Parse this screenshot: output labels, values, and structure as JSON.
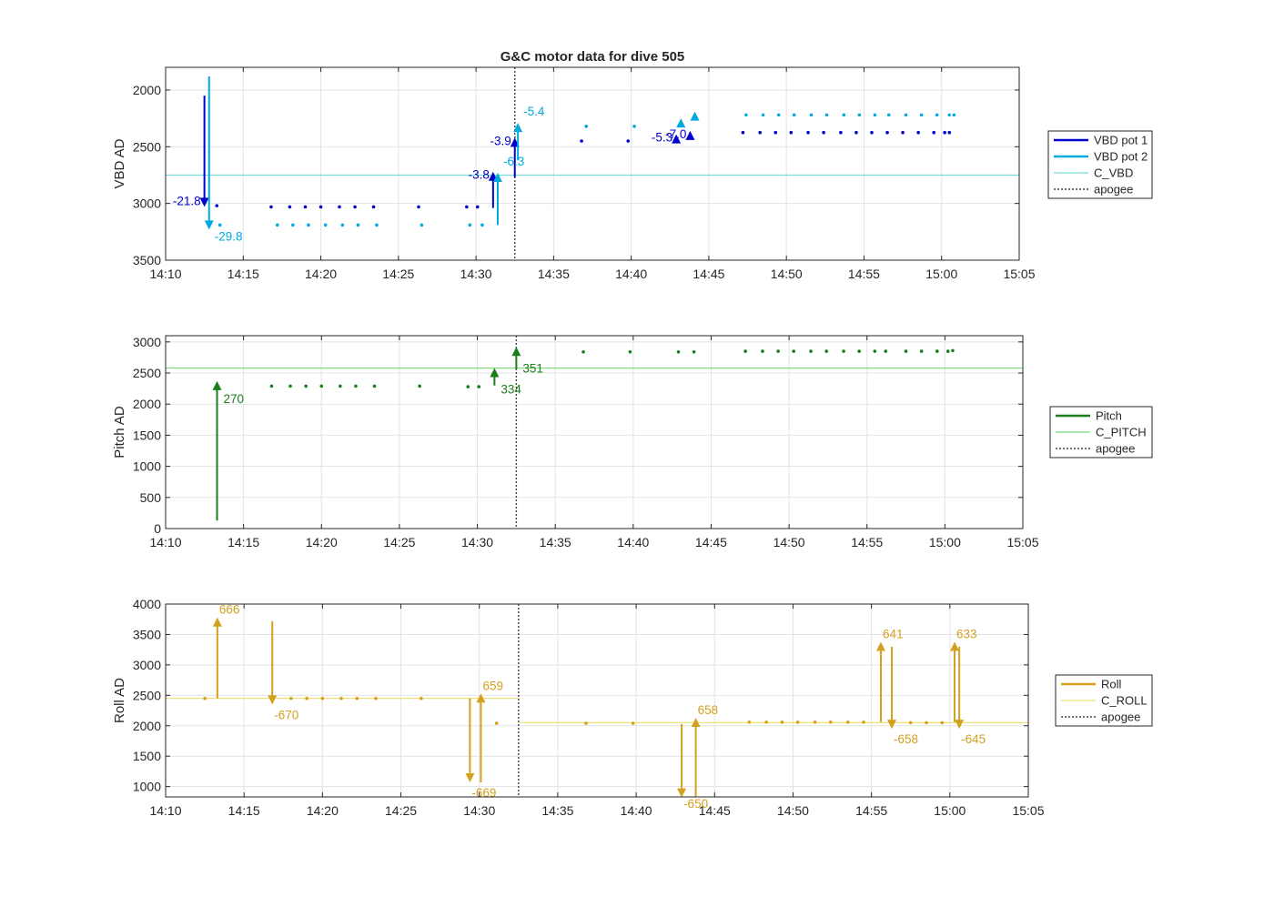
{
  "chart_data": [
    {
      "type": "scatter",
      "title": "G&C motor data for dive 505",
      "ylabel": "VBD AD",
      "xlim": [
        "14:10",
        "15:05"
      ],
      "ylim": [
        3500,
        1800
      ],
      "y_reversed": true,
      "xticks": [
        "14:10",
        "14:15",
        "14:20",
        "14:25",
        "14:30",
        "14:35",
        "14:40",
        "14:45",
        "14:50",
        "14:55",
        "15:00",
        "15:05"
      ],
      "yticks": [
        2000,
        2500,
        3000,
        3500
      ],
      "grid": true,
      "legend": {
        "placement": "outside-right",
        "entries": [
          "VBD pot 1",
          "VBD pot 2",
          "C_VBD",
          "apogee"
        ]
      },
      "series": [
        {
          "name": "VBD pot 1",
          "color": "#0000cc",
          "points": [
            [
              "14:13.3",
              3020
            ],
            [
              "14:16.8",
              3030
            ],
            [
              "14:18.0",
              3030
            ],
            [
              "14:19.0",
              3030
            ],
            [
              "14:20.0",
              3030
            ],
            [
              "14:21.2",
              3030
            ],
            [
              "14:22.2",
              3030
            ],
            [
              "14:23.4",
              3030
            ],
            [
              "14:26.3",
              3030
            ],
            [
              "14:29.4",
              3030
            ],
            [
              "14:30.1",
              3030
            ],
            [
              "14:36.8",
              2450
            ],
            [
              "14:39.8",
              2450
            ],
            [
              "14:47.2",
              2375
            ],
            [
              "14:48.3",
              2375
            ],
            [
              "14:49.3",
              2375
            ],
            [
              "14:50.3",
              2375
            ],
            [
              "14:51.4",
              2375
            ],
            [
              "14:52.4",
              2375
            ],
            [
              "14:53.5",
              2375
            ],
            [
              "14:54.5",
              2375
            ],
            [
              "14:55.5",
              2375
            ],
            [
              "14:56.5",
              2375
            ],
            [
              "14:57.5",
              2375
            ],
            [
              "14:58.5",
              2375
            ],
            [
              "14:59.5",
              2375
            ],
            [
              "15:00.2",
              2375
            ],
            [
              "15:00.5",
              2375
            ]
          ]
        },
        {
          "name": "VBD pot 2",
          "color": "#00aadd",
          "points": [
            [
              "14:13.5",
              3190
            ],
            [
              "14:17.2",
              3190
            ],
            [
              "14:18.2",
              3190
            ],
            [
              "14:19.2",
              3190
            ],
            [
              "14:20.3",
              3190
            ],
            [
              "14:21.4",
              3190
            ],
            [
              "14:22.4",
              3190
            ],
            [
              "14:23.6",
              3190
            ],
            [
              "14:26.5",
              3190
            ],
            [
              "14:29.6",
              3190
            ],
            [
              "14:30.4",
              3190
            ],
            [
              "14:37.1",
              2320
            ],
            [
              "14:40.2",
              2320
            ],
            [
              "14:47.4",
              2220
            ],
            [
              "14:48.5",
              2220
            ],
            [
              "14:49.5",
              2220
            ],
            [
              "14:50.5",
              2220
            ],
            [
              "14:51.6",
              2220
            ],
            [
              "14:52.6",
              2220
            ],
            [
              "14:53.7",
              2220
            ],
            [
              "14:54.7",
              2220
            ],
            [
              "14:55.7",
              2220
            ],
            [
              "14:56.6",
              2220
            ],
            [
              "14:57.7",
              2220
            ],
            [
              "14:58.7",
              2220
            ],
            [
              "14:59.7",
              2220
            ],
            [
              "15:00.5",
              2220
            ],
            [
              "15:00.8",
              2220
            ]
          ]
        }
      ],
      "reference_lines": [
        {
          "name": "C_VBD",
          "y": 2750,
          "color": "#77dddd"
        }
      ],
      "apogee": "14:32.5",
      "moves": [
        {
          "series": "VBD pot 1",
          "t": "14:12.5",
          "from": 2050,
          "to": 3030,
          "label": "-21.8"
        },
        {
          "series": "VBD pot 2",
          "t": "14:12.8",
          "from": 1880,
          "to": 3230,
          "label": "-29.8"
        },
        {
          "series": "VBD pot 1",
          "t": "14:31.1",
          "from": 3040,
          "to": 2720,
          "label": "-3.8"
        },
        {
          "series": "VBD pot 2",
          "t": "14:31.4",
          "from": 3190,
          "to": 2730,
          "label": "-6.3"
        },
        {
          "series": "VBD pot 1",
          "t": "14:32.5",
          "from": 2770,
          "to": 2420,
          "label": "-3.9"
        },
        {
          "series": "VBD pot 2",
          "t": "14:32.7",
          "from": 2620,
          "to": 2290,
          "label": "-5.4"
        },
        {
          "series": "VBD pot 1",
          "t": "14:42.9",
          "from": 2430,
          "to": 2390,
          "label": "-5.3"
        },
        {
          "series": "VBD pot 2",
          "t": "14:43.2",
          "from": 2330,
          "to": 2250,
          "label": ""
        },
        {
          "series": "VBD pot 1",
          "t": "14:43.8",
          "from": 2400,
          "to": 2360,
          "label": "-7.0"
        },
        {
          "series": "VBD pot 2",
          "t": "14:44.1",
          "from": 2260,
          "to": 2190,
          "label": ""
        }
      ]
    },
    {
      "type": "scatter",
      "title": "",
      "ylabel": "Pitch AD",
      "xlim": [
        "14:10",
        "15:05"
      ],
      "ylim": [
        0,
        3100
      ],
      "xticks": [
        "14:10",
        "14:15",
        "14:20",
        "14:25",
        "14:30",
        "14:35",
        "14:40",
        "14:45",
        "14:50",
        "14:55",
        "15:00",
        "15:05"
      ],
      "yticks": [
        0,
        500,
        1000,
        1500,
        2000,
        2500,
        3000
      ],
      "grid": true,
      "legend": {
        "placement": "outside-right",
        "entries": [
          "Pitch",
          "C_PITCH",
          "apogee"
        ]
      },
      "series": [
        {
          "name": "Pitch",
          "color": "#1a7f1a",
          "points": [
            [
              "14:16.8",
              2290
            ],
            [
              "14:18.0",
              2290
            ],
            [
              "14:19.0",
              2290
            ],
            [
              "14:20.0",
              2290
            ],
            [
              "14:21.2",
              2290
            ],
            [
              "14:22.2",
              2290
            ],
            [
              "14:23.4",
              2290
            ],
            [
              "14:26.3",
              2290
            ],
            [
              "14:29.4",
              2280
            ],
            [
              "14:30.1",
              2280
            ],
            [
              "14:36.8",
              2840
            ],
            [
              "14:39.8",
              2840
            ],
            [
              "14:42.9",
              2840
            ],
            [
              "14:43.9",
              2840
            ],
            [
              "14:47.2",
              2850
            ],
            [
              "14:48.3",
              2850
            ],
            [
              "14:49.3",
              2850
            ],
            [
              "14:50.3",
              2850
            ],
            [
              "14:51.4",
              2850
            ],
            [
              "14:52.4",
              2850
            ],
            [
              "14:53.5",
              2850
            ],
            [
              "14:54.5",
              2850
            ],
            [
              "14:55.5",
              2850
            ],
            [
              "14:56.2",
              2850
            ],
            [
              "14:57.5",
              2850
            ],
            [
              "14:58.5",
              2850
            ],
            [
              "14:59.5",
              2850
            ],
            [
              "15:00.2",
              2850
            ],
            [
              "15:00.5",
              2860
            ]
          ]
        }
      ],
      "reference_lines": [
        {
          "name": "C_PITCH",
          "y": 2580,
          "color": "#77dd77"
        }
      ],
      "apogee": "14:32.5",
      "moves": [
        {
          "series": "Pitch",
          "t": "14:13.3",
          "from": 130,
          "to": 2370,
          "label": "270"
        },
        {
          "series": "Pitch",
          "t": "14:31.1",
          "from": 2300,
          "to": 2580,
          "label": "334"
        },
        {
          "series": "Pitch",
          "t": "14:32.5",
          "from": 2560,
          "to": 2920,
          "label": "351"
        }
      ]
    },
    {
      "type": "scatter",
      "title": "",
      "ylabel": "Roll AD",
      "xlim": [
        "14:10",
        "15:05"
      ],
      "ylim": [
        830,
        4000
      ],
      "xticks": [
        "14:10",
        "14:15",
        "14:20",
        "14:25",
        "14:30",
        "14:35",
        "14:40",
        "14:45",
        "14:50",
        "14:55",
        "15:00",
        "15:05"
      ],
      "yticks": [
        1000,
        1500,
        2000,
        2500,
        3000,
        3500,
        4000
      ],
      "grid": true,
      "legend": {
        "placement": "outside-right",
        "entries": [
          "Roll",
          "C_ROLL",
          "apogee"
        ]
      },
      "series": [
        {
          "name": "Roll",
          "color": "#d4a020",
          "points": [
            [
              "14:12.5",
              2450
            ],
            [
              "14:18.0",
              2450
            ],
            [
              "14:19.0",
              2450
            ],
            [
              "14:20.0",
              2450
            ],
            [
              "14:21.2",
              2450
            ],
            [
              "14:22.2",
              2450
            ],
            [
              "14:23.4",
              2450
            ],
            [
              "14:26.3",
              2450
            ],
            [
              "14:31.1",
              2040
            ],
            [
              "14:36.8",
              2040
            ],
            [
              "14:39.8",
              2040
            ],
            [
              "14:47.2",
              2060
            ],
            [
              "14:48.3",
              2060
            ],
            [
              "14:49.3",
              2060
            ],
            [
              "14:50.3",
              2060
            ],
            [
              "14:51.4",
              2060
            ],
            [
              "14:52.4",
              2060
            ],
            [
              "14:53.5",
              2060
            ],
            [
              "14:54.5",
              2060
            ],
            [
              "14:57.5",
              2050
            ],
            [
              "14:58.5",
              2050
            ],
            [
              "14:59.5",
              2050
            ]
          ]
        }
      ],
      "reference_lines": [
        {
          "name": "C_ROLL",
          "y": 2450,
          "x_from": "14:10",
          "x_to": "14:32.5",
          "color": "#f0e07a"
        },
        {
          "name": "C_ROLL",
          "y": 2050,
          "x_from": "14:32.5",
          "x_to": "15:05",
          "color": "#f0e07a"
        }
      ],
      "apogee": "14:32.5",
      "moves": [
        {
          "series": "Roll",
          "t": "14:13.3",
          "from": 2450,
          "to": 3780,
          "label": "666"
        },
        {
          "series": "Roll",
          "t": "14:16.8",
          "from": 3720,
          "to": 2350,
          "label": "-670"
        },
        {
          "series": "Roll",
          "t": "14:29.4",
          "from": 2450,
          "to": 1070,
          "label": "-669"
        },
        {
          "series": "Roll",
          "t": "14:30.1",
          "from": 1070,
          "to": 2530,
          "label": "659"
        },
        {
          "series": "Roll",
          "t": "14:42.9",
          "from": 2030,
          "to": 820,
          "label": "-650"
        },
        {
          "series": "Roll",
          "t": "14:43.8",
          "from": 820,
          "to": 2130,
          "label": "658"
        },
        {
          "series": "Roll",
          "t": "14:55.6",
          "from": 2060,
          "to": 3380,
          "label": "641"
        },
        {
          "series": "Roll",
          "t": "14:56.3",
          "from": 3300,
          "to": 1950,
          "label": "-658"
        },
        {
          "series": "Roll",
          "t": "15:00.3",
          "from": 2060,
          "to": 3380,
          "label": "633"
        },
        {
          "series": "Roll",
          "t": "15:00.6",
          "from": 3300,
          "to": 1950,
          "label": "-645"
        }
      ]
    }
  ]
}
